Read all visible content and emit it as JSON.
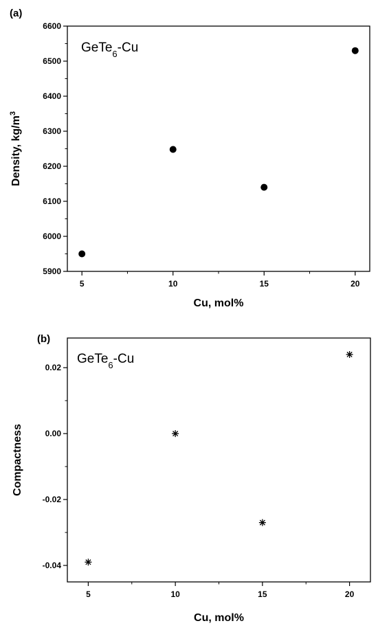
{
  "chart_data": [
    {
      "panel": "(a)",
      "type": "scatter",
      "annotation": {
        "base": "GeTe",
        "sub": "6",
        "rest": "-Cu"
      },
      "xlabel": "Cu, mol%",
      "ylabel": "Density, kg/m",
      "ylabel_sup": "3",
      "xlim": [
        4.2,
        20.8
      ],
      "ylim": [
        5900,
        6600
      ],
      "xticks": [
        5,
        10,
        15,
        20
      ],
      "xtick_labels": [
        "5",
        "10",
        "15",
        "20"
      ],
      "yticks": [
        5900,
        6000,
        6100,
        6200,
        6300,
        6400,
        6500,
        6600
      ],
      "ytick_labels": [
        "5900",
        "6000",
        "6100",
        "6200",
        "6300",
        "6400",
        "6500",
        "6600"
      ],
      "marker": "circle",
      "series": [
        {
          "x": [
            5,
            10,
            15,
            20
          ],
          "y": [
            5950,
            6248,
            6140,
            6530
          ]
        }
      ]
    },
    {
      "panel": "(b)",
      "type": "scatter",
      "annotation": {
        "base": "GeTe",
        "sub": "6",
        "rest": "-Cu"
      },
      "xlabel": "Cu, mol%",
      "ylabel": "Compactness",
      "xlim": [
        3.8,
        21.2
      ],
      "ylim": [
        -0.045,
        0.029
      ],
      "xticks": [
        5,
        10,
        15,
        20
      ],
      "xtick_labels": [
        "5",
        "10",
        "15",
        "20"
      ],
      "yticks": [
        -0.04,
        -0.02,
        0.0,
        0.02
      ],
      "ytick_labels": [
        "-0.04",
        "-0.02",
        "0.00",
        "0.02"
      ],
      "marker": "asterisk",
      "series": [
        {
          "x": [
            5,
            10,
            15,
            20
          ],
          "y": [
            -0.039,
            0.0,
            -0.027,
            0.024
          ]
        }
      ]
    }
  ]
}
